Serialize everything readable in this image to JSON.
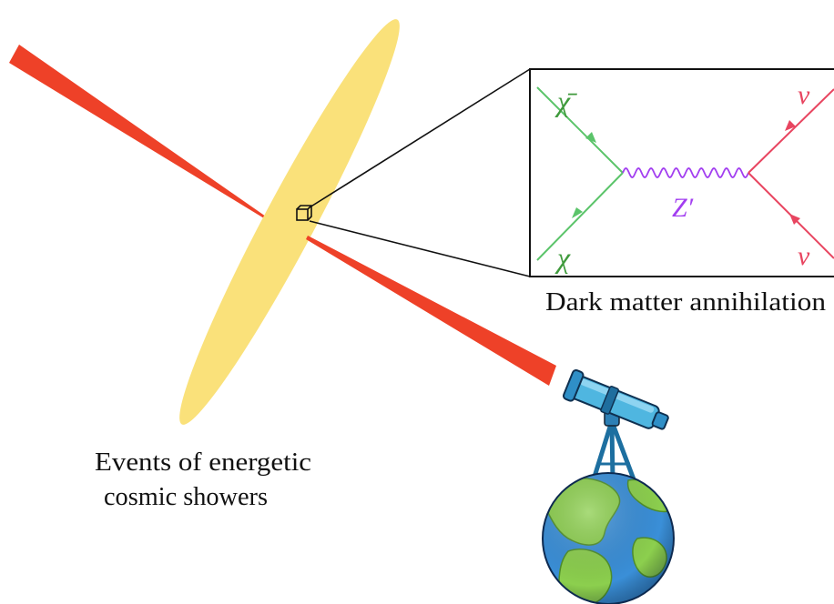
{
  "labels": {
    "showers_line1": "Events of energetic",
    "showers_line2": "cosmic showers",
    "annihilation": "Dark matter annihilation"
  },
  "feynman": {
    "chi_bar": "χ̄",
    "chi": "χ",
    "mediator": "Z′",
    "nu_top": "ν",
    "nu_bottom": "ν"
  },
  "colors": {
    "beam": "#ee4128",
    "ellipse": "#fae17a",
    "dark_matter": "#5bc46a",
    "dark_matter_text": "#3f9a3c",
    "neutrino": "#e84560",
    "mediator": "#a23ef0",
    "ocean": "#3a8fd8",
    "land": "#8ccf4e",
    "telescope": "#4fb6e0"
  }
}
